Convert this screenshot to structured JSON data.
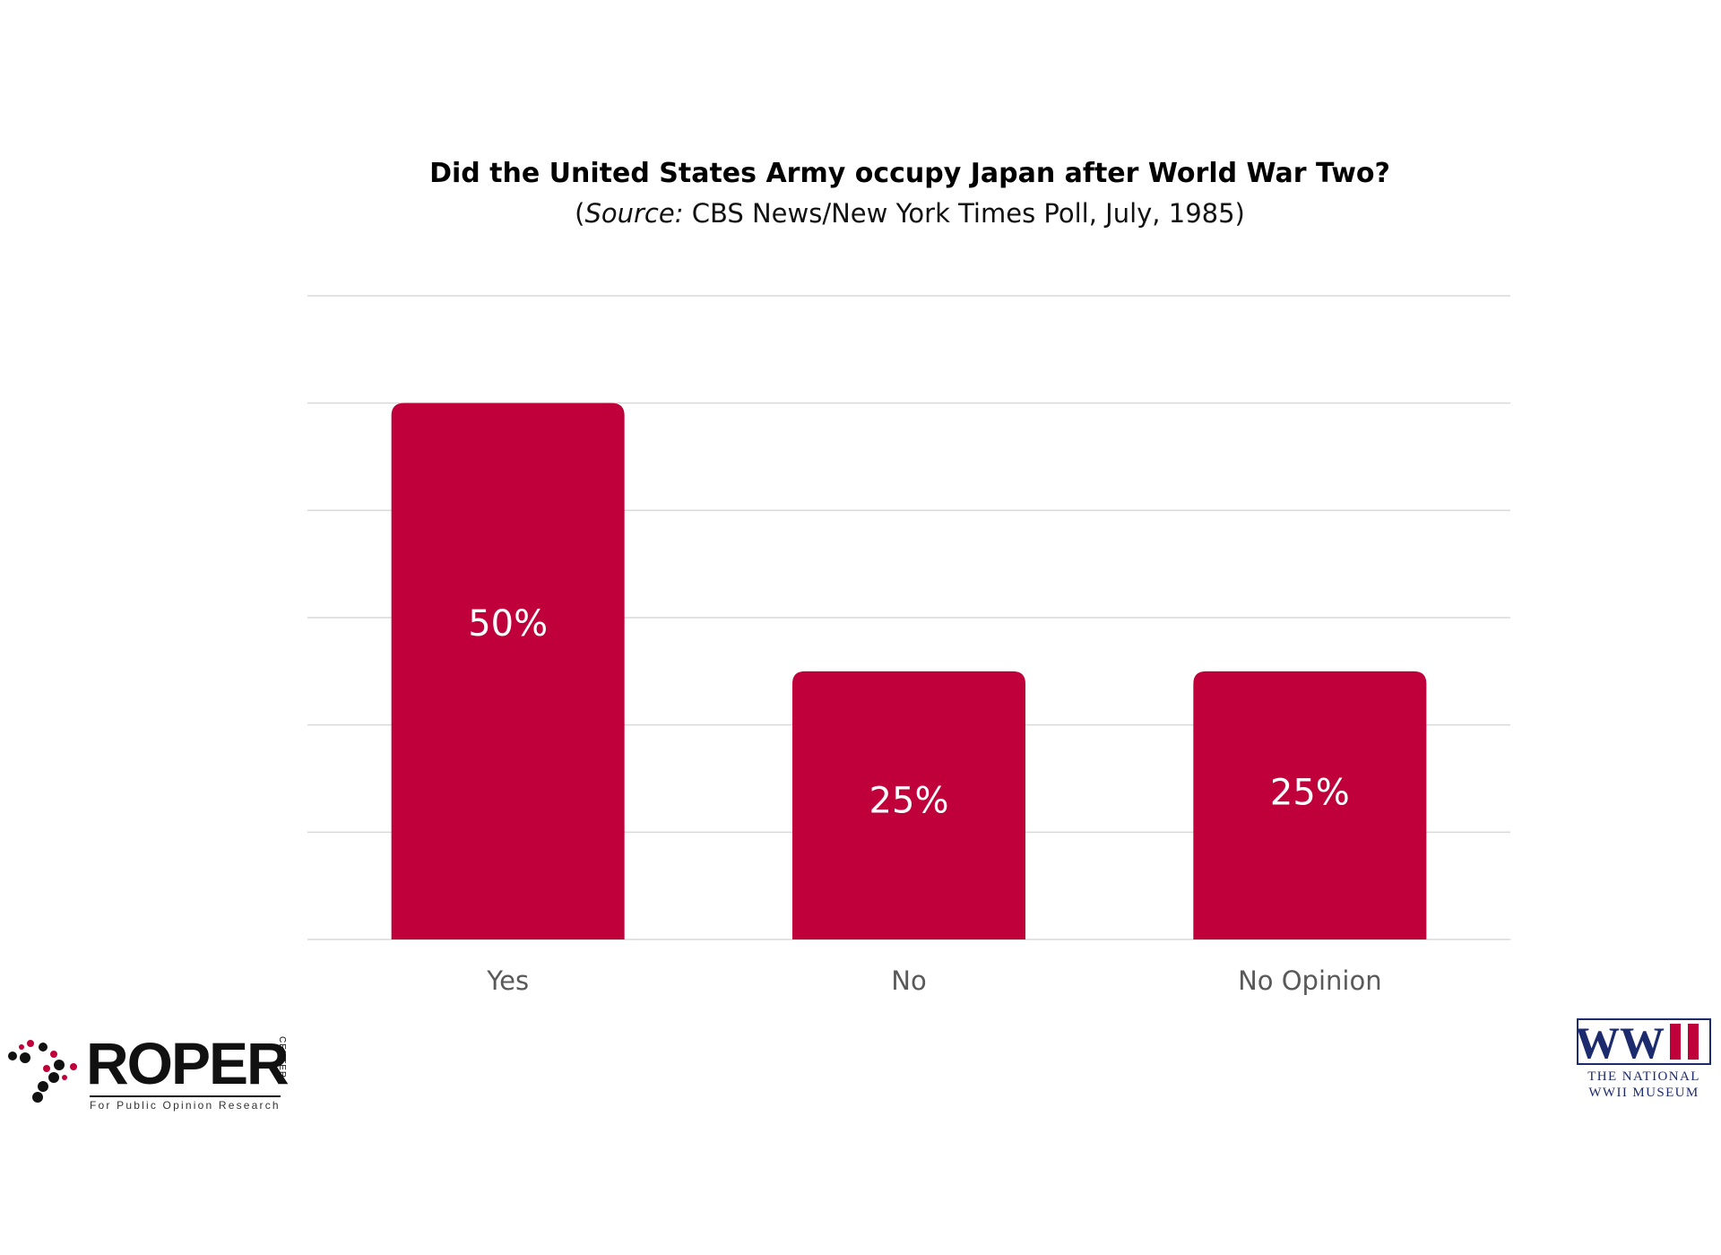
{
  "title": "Did the United States Army occupy Japan after World War Two?",
  "subtitle": {
    "open": "(",
    "source_label": "Source:",
    "source_text": " CBS News/New York Times Poll, July, 1985)"
  },
  "colors": {
    "bar": "#c0003a",
    "grid": "#d9d9d9",
    "label": "#595959",
    "value_label": "#ffffff"
  },
  "chart_data": {
    "type": "bar",
    "title": "Did the United States Army occupy Japan after World War Two?",
    "categories": [
      "Yes",
      "No",
      "No Opinion"
    ],
    "values": [
      50,
      25,
      25
    ],
    "value_labels": [
      "50%",
      "25%",
      "25%"
    ],
    "ylim": [
      0,
      60
    ],
    "grid": true,
    "legend": "none",
    "xlabel": "",
    "ylabel": ""
  },
  "logos": {
    "roper": {
      "name": "ROPER",
      "side": "CENTER",
      "tagline": "For Public Opinion Research"
    },
    "museum": {
      "mark": "WWII",
      "line1": "THE NATIONAL",
      "line2": "WWII MUSEUM"
    }
  }
}
